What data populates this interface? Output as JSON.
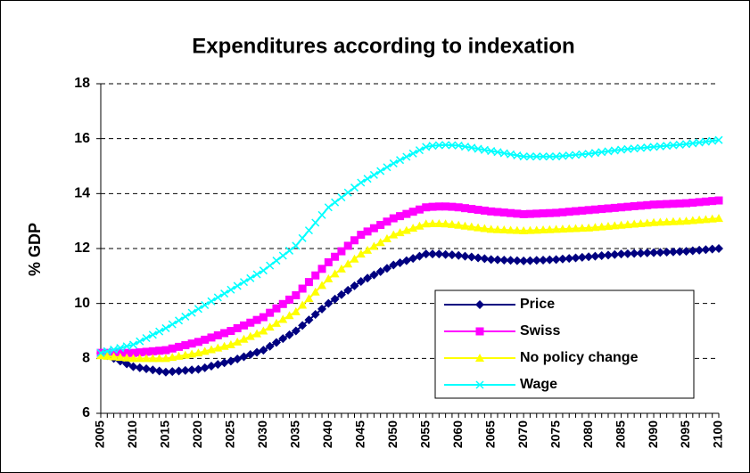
{
  "chart_data": {
    "type": "line",
    "title": "Expenditures according to indexation",
    "y_label": "% GDP",
    "x": [
      2005,
      2006,
      2007,
      2008,
      2009,
      2010,
      2011,
      2012,
      2013,
      2014,
      2015,
      2016,
      2017,
      2018,
      2019,
      2020,
      2021,
      2022,
      2023,
      2024,
      2025,
      2026,
      2027,
      2028,
      2029,
      2030,
      2031,
      2032,
      2033,
      2034,
      2035,
      2036,
      2037,
      2038,
      2039,
      2040,
      2041,
      2042,
      2043,
      2044,
      2045,
      2046,
      2047,
      2048,
      2049,
      2050,
      2051,
      2052,
      2053,
      2054,
      2055,
      2056,
      2057,
      2058,
      2059,
      2060,
      2061,
      2062,
      2063,
      2064,
      2065,
      2066,
      2067,
      2068,
      2069,
      2070,
      2071,
      2072,
      2073,
      2074,
      2075,
      2076,
      2077,
      2078,
      2079,
      2080,
      2081,
      2082,
      2083,
      2084,
      2085,
      2086,
      2087,
      2088,
      2089,
      2090,
      2091,
      2092,
      2093,
      2094,
      2095,
      2096,
      2097,
      2098,
      2099,
      2100
    ],
    "xlim": [
      2005,
      2100
    ],
    "xticks": [
      2005,
      2010,
      2015,
      2020,
      2025,
      2030,
      2035,
      2040,
      2045,
      2050,
      2055,
      2060,
      2065,
      2070,
      2075,
      2080,
      2085,
      2090,
      2095,
      2100
    ],
    "ylim": [
      6,
      18
    ],
    "yticks": [
      6,
      8,
      10,
      12,
      14,
      16,
      18
    ],
    "grid": true,
    "legend": "lower right",
    "series": [
      {
        "name": "Price",
        "color": "#000080",
        "marker": "diamond",
        "values": [
          8.2,
          8.1,
          8.0,
          7.9,
          7.8,
          7.7,
          7.66,
          7.62,
          7.58,
          7.54,
          7.5,
          7.52,
          7.54,
          7.56,
          7.58,
          7.6,
          7.66,
          7.72,
          7.78,
          7.84,
          7.9,
          7.98,
          8.06,
          8.14,
          8.22,
          8.3,
          8.44,
          8.58,
          8.72,
          8.86,
          9.0,
          9.2,
          9.4,
          9.6,
          9.8,
          10.0,
          10.16,
          10.32,
          10.48,
          10.64,
          10.8,
          10.92,
          11.04,
          11.16,
          11.28,
          11.4,
          11.48,
          11.56,
          11.64,
          11.72,
          11.8,
          11.8,
          11.8,
          11.78,
          11.77,
          11.75,
          11.72,
          11.69,
          11.66,
          11.63,
          11.6,
          11.59,
          11.58,
          11.57,
          11.56,
          11.55,
          11.56,
          11.57,
          11.58,
          11.59,
          11.6,
          11.62,
          11.64,
          11.66,
          11.68,
          11.7,
          11.72,
          11.74,
          11.76,
          11.78,
          11.8,
          11.81,
          11.82,
          11.83,
          11.84,
          11.85,
          11.86,
          11.87,
          11.88,
          11.89,
          11.9,
          11.92,
          11.94,
          11.96,
          11.98,
          12.0
        ]
      },
      {
        "name": "Swiss",
        "color": "#FF00FF",
        "marker": "square",
        "values": [
          8.2,
          8.2,
          8.2,
          8.2,
          8.2,
          8.2,
          8.22,
          8.24,
          8.26,
          8.28,
          8.3,
          8.36,
          8.42,
          8.48,
          8.54,
          8.6,
          8.68,
          8.76,
          8.84,
          8.92,
          9.0,
          9.1,
          9.2,
          9.3,
          9.4,
          9.5,
          9.66,
          9.82,
          9.98,
          10.14,
          10.3,
          10.54,
          10.78,
          11.02,
          11.26,
          11.5,
          11.7,
          11.9,
          12.1,
          12.3,
          12.5,
          12.62,
          12.74,
          12.86,
          12.98,
          13.1,
          13.18,
          13.26,
          13.34,
          13.42,
          13.5,
          13.52,
          13.53,
          13.53,
          13.52,
          13.5,
          13.47,
          13.44,
          13.41,
          13.38,
          13.35,
          13.33,
          13.31,
          13.29,
          13.27,
          13.25,
          13.26,
          13.27,
          13.28,
          13.29,
          13.3,
          13.32,
          13.34,
          13.36,
          13.38,
          13.4,
          13.42,
          13.44,
          13.46,
          13.48,
          13.5,
          13.52,
          13.54,
          13.56,
          13.58,
          13.6,
          13.61,
          13.62,
          13.63,
          13.64,
          13.65,
          13.67,
          13.69,
          13.71,
          13.73,
          13.75
        ]
      },
      {
        "name": "No policy change",
        "color": "#FFFF00",
        "marker": "triangle",
        "values": [
          8.1,
          8.08,
          8.06,
          8.04,
          8.02,
          8.0,
          8.0,
          8.0,
          8.0,
          8.0,
          8.0,
          8.04,
          8.08,
          8.12,
          8.16,
          8.2,
          8.26,
          8.32,
          8.38,
          8.44,
          8.5,
          8.6,
          8.7,
          8.8,
          8.9,
          9.0,
          9.14,
          9.28,
          9.42,
          9.56,
          9.7,
          9.94,
          10.18,
          10.42,
          10.66,
          10.9,
          11.08,
          11.26,
          11.44,
          11.62,
          11.8,
          11.94,
          12.08,
          12.22,
          12.36,
          12.5,
          12.58,
          12.66,
          12.74,
          12.82,
          12.9,
          12.91,
          12.91,
          12.9,
          12.88,
          12.85,
          12.82,
          12.79,
          12.76,
          12.73,
          12.7,
          12.69,
          12.68,
          12.67,
          12.66,
          12.65,
          12.66,
          12.67,
          12.68,
          12.69,
          12.7,
          12.71,
          12.72,
          12.73,
          12.74,
          12.75,
          12.77,
          12.79,
          12.81,
          12.83,
          12.85,
          12.87,
          12.89,
          12.91,
          12.93,
          12.95,
          12.96,
          12.97,
          12.98,
          12.99,
          13.0,
          13.02,
          13.04,
          13.06,
          13.08,
          13.1
        ]
      },
      {
        "name": "Wage",
        "color": "#00FFFF",
        "marker": "x",
        "values": [
          8.2,
          8.26,
          8.32,
          8.38,
          8.44,
          8.5,
          8.62,
          8.74,
          8.86,
          8.98,
          9.1,
          9.24,
          9.38,
          9.52,
          9.66,
          9.8,
          9.94,
          10.08,
          10.22,
          10.36,
          10.5,
          10.64,
          10.78,
          10.92,
          11.06,
          11.2,
          11.38,
          11.56,
          11.74,
          11.92,
          12.1,
          12.38,
          12.66,
          12.94,
          13.22,
          13.5,
          13.68,
          13.86,
          14.04,
          14.22,
          14.4,
          14.54,
          14.68,
          14.82,
          14.96,
          15.1,
          15.22,
          15.34,
          15.46,
          15.58,
          15.7,
          15.74,
          15.76,
          15.77,
          15.76,
          15.75,
          15.71,
          15.67,
          15.63,
          15.59,
          15.55,
          15.51,
          15.47,
          15.43,
          15.39,
          15.35,
          15.35,
          15.35,
          15.35,
          15.35,
          15.35,
          15.37,
          15.39,
          15.41,
          15.43,
          15.45,
          15.48,
          15.51,
          15.54,
          15.57,
          15.6,
          15.62,
          15.64,
          15.66,
          15.68,
          15.7,
          15.72,
          15.74,
          15.76,
          15.78,
          15.8,
          15.83,
          15.86,
          15.89,
          15.92,
          15.95
        ]
      }
    ]
  }
}
